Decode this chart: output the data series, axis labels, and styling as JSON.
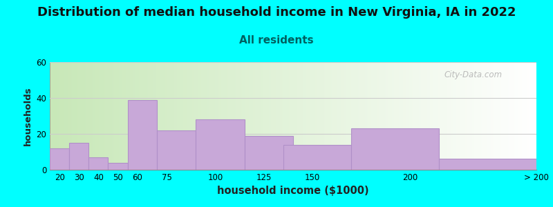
{
  "title": "Distribution of median household income in New Virginia, IA in 2022",
  "subtitle": "All residents",
  "xlabel": "household income ($1000)",
  "ylabel": "households",
  "bar_labels": [
    "20",
    "30",
    "40",
    "50",
    "60",
    "75",
    "100",
    "125",
    "150",
    "200",
    "> 200"
  ],
  "bar_values": [
    12,
    15,
    7,
    4,
    39,
    22,
    28,
    19,
    14,
    23,
    6
  ],
  "bar_lefts": [
    15,
    25,
    35,
    45,
    55,
    70,
    90,
    115,
    135,
    170,
    215
  ],
  "bar_widths": [
    10,
    10,
    10,
    10,
    15,
    20,
    25,
    25,
    35,
    45,
    50
  ],
  "bar_color": "#c8a8d8",
  "bar_edgecolor": "#b090c8",
  "background_color": "#00ffff",
  "ylim": [
    0,
    60
  ],
  "yticks": [
    0,
    20,
    40,
    60
  ],
  "xlim": [
    15,
    265
  ],
  "xtick_positions": [
    20,
    30,
    40,
    50,
    60,
    75,
    100,
    125,
    150,
    200,
    265
  ],
  "xtick_labels": [
    "20",
    "30",
    "40",
    "50",
    "60",
    "75",
    "100",
    "125",
    "150",
    "200",
    "> 200"
  ],
  "title_fontsize": 13,
  "subtitle_fontsize": 11,
  "subtitle_color": "#006060",
  "watermark": "City-Data.com",
  "grid_color": "#cccccc",
  "plot_bg_left": "#c8e8b8",
  "plot_bg_right": "#f0f8f0"
}
